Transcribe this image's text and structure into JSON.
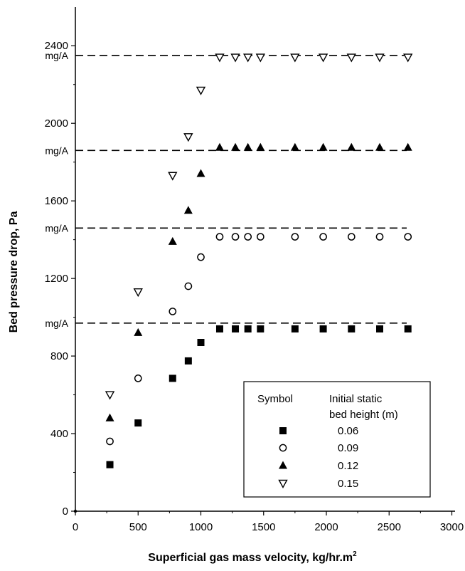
{
  "chart_data": {
    "type": "scatter",
    "xlabel": "Superficial gas mass velocity, kg/hr.m",
    "xlabel_superscript": "2",
    "ylabel": "Bed pressure drop, Pa",
    "xlim": [
      0,
      3000
    ],
    "ylim": [
      0,
      2600
    ],
    "x_ticks": [
      0,
      500,
      1000,
      1500,
      2000,
      2500,
      3000
    ],
    "y_ticks": [
      0,
      400,
      800,
      1200,
      1600,
      2000,
      2400
    ],
    "grid": false,
    "legend": {
      "placement": "bottom-right",
      "header_symbol": "Symbol",
      "header_value": "Initial static bed height (m)",
      "header_value_lines": [
        "Initial static",
        "bed height (m)"
      ]
    },
    "reference_lines": [
      {
        "y": 970,
        "label": "mg/A"
      },
      {
        "y": 1460,
        "label": "mg/A"
      },
      {
        "y": 1860,
        "label": "mg/A"
      },
      {
        "y": 2350,
        "label": "mg/A"
      }
    ],
    "origin_point": {
      "x": 0,
      "y": 0
    },
    "series": [
      {
        "name": "0.06",
        "marker": "square-filled",
        "x": [
          275,
          500,
          775,
          900,
          1000,
          1150,
          1275,
          1375,
          1475,
          1750,
          1975,
          2200,
          2425,
          2650
        ],
        "y": [
          240,
          455,
          685,
          775,
          870,
          940,
          940,
          940,
          940,
          940,
          940,
          940,
          940,
          940
        ]
      },
      {
        "name": "0.09",
        "marker": "circle-open",
        "x": [
          275,
          500,
          775,
          900,
          1000,
          1150,
          1275,
          1375,
          1475,
          1750,
          1975,
          2200,
          2425,
          2650
        ],
        "y": [
          360,
          685,
          1030,
          1160,
          1310,
          1415,
          1415,
          1415,
          1415,
          1415,
          1415,
          1415,
          1415,
          1415
        ]
      },
      {
        "name": "0.12",
        "marker": "triangle-up-filled",
        "x": [
          275,
          500,
          775,
          900,
          1000,
          1150,
          1275,
          1375,
          1475,
          1750,
          1975,
          2200,
          2425,
          2650
        ],
        "y": [
          480,
          920,
          1390,
          1550,
          1740,
          1875,
          1875,
          1875,
          1875,
          1875,
          1875,
          1875,
          1875,
          1875
        ]
      },
      {
        "name": "0.15",
        "marker": "triangle-down-open",
        "x": [
          275,
          500,
          775,
          900,
          1000,
          1150,
          1275,
          1375,
          1475,
          1750,
          1975,
          2200,
          2425,
          2650
        ],
        "y": [
          600,
          1130,
          1730,
          1930,
          2170,
          2340,
          2340,
          2340,
          2340,
          2340,
          2340,
          2340,
          2340,
          2340
        ]
      }
    ]
  }
}
